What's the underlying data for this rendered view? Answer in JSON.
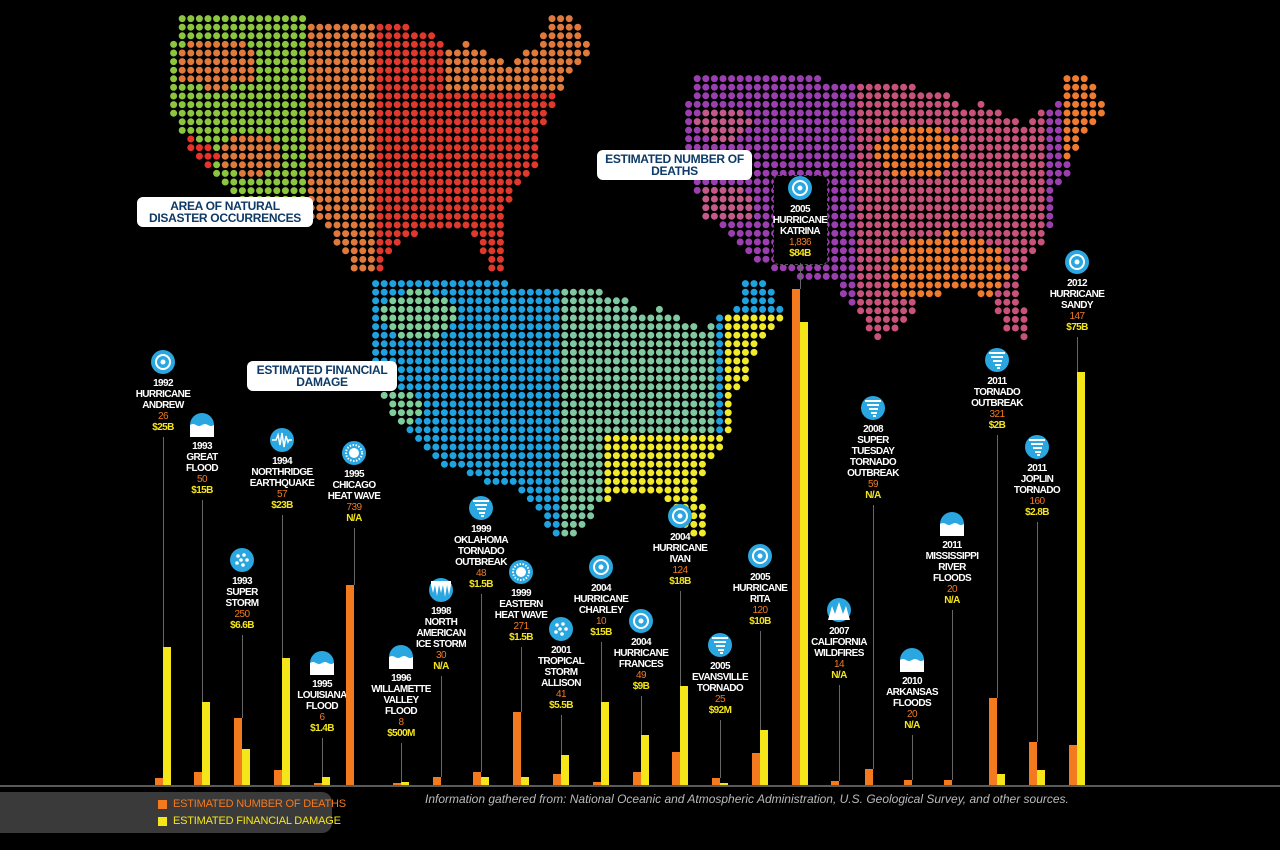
{
  "colors": {
    "deaths": "#f47a20",
    "damage": "#f5e61a",
    "icon": "#2aa6e0",
    "label_text": "#0d3a66"
  },
  "map_labels": {
    "occurrences": "AREA OF NATURAL DISASTER OCCURRENCES",
    "deaths": "ESTIMATED NUMBER OF DEATHS",
    "damage": "ESTIMATED FINANCIAL DAMAGE"
  },
  "legend": {
    "deaths": "ESTIMATED NUMBER OF DEATHS",
    "damage": "ESTIMATED FINANCIAL DAMAGE"
  },
  "source": "Information gathered from: National Oceanic and Atmospheric Administration, U.S. Geological Survey, and other sources.",
  "chart_data": {
    "type": "bar",
    "series": [
      {
        "name": "ESTIMATED NUMBER OF DEATHS",
        "unit": "deaths"
      },
      {
        "name": "ESTIMATED FINANCIAL DAMAGE",
        "unit": "billion USD"
      }
    ],
    "events": [
      {
        "year": "1992",
        "name": [
          "HURRICANE",
          "ANDREW"
        ],
        "icon": "hurricane-icon",
        "deaths_label": "26",
        "deaths": 26,
        "damage_label": "$25B",
        "damage": 25
      },
      {
        "year": "1993",
        "name": [
          "GREAT",
          "FLOOD"
        ],
        "icon": "flood-icon",
        "deaths_label": "50",
        "deaths": 50,
        "damage_label": "$15B",
        "damage": 15
      },
      {
        "year": "1993",
        "name": [
          "SUPER",
          "STORM"
        ],
        "icon": "storm-icon",
        "deaths_label": "250",
        "deaths": 250,
        "damage_label": "$6.6B",
        "damage": 6.6
      },
      {
        "year": "1994",
        "name": [
          "NORTHRIDGE",
          "EARTHQUAKE"
        ],
        "icon": "earthquake-icon",
        "deaths_label": "57",
        "deaths": 57,
        "damage_label": "$23B",
        "damage": 23
      },
      {
        "year": "1995",
        "name": [
          "LOUISIANA",
          "FLOOD"
        ],
        "icon": "flood-icon",
        "deaths_label": "6",
        "deaths": 6,
        "damage_label": "$1.4B",
        "damage": 1.4
      },
      {
        "year": "1995",
        "name": [
          "CHICAGO",
          "HEAT WAVE"
        ],
        "icon": "heat-icon",
        "deaths_label": "739",
        "deaths": 739,
        "damage_label": "N/A",
        "damage": null
      },
      {
        "year": "1996",
        "name": [
          "WILLAMETTE",
          "VALLEY",
          "FLOOD"
        ],
        "icon": "flood-icon",
        "deaths_label": "8",
        "deaths": 8,
        "damage_label": "$500M",
        "damage": 0.5
      },
      {
        "year": "1998",
        "name": [
          "NORTH",
          "AMERICAN",
          "ICE STORM"
        ],
        "icon": "ice-icon",
        "deaths_label": "30",
        "deaths": 30,
        "damage_label": "N/A",
        "damage": null
      },
      {
        "year": "1999",
        "name": [
          "OKLAHOMA",
          "TORNADO",
          "OUTBREAK"
        ],
        "icon": "tornado-icon",
        "deaths_label": "48",
        "deaths": 48,
        "damage_label": "$1.5B",
        "damage": 1.5
      },
      {
        "year": "1999",
        "name": [
          "EASTERN",
          "HEAT WAVE"
        ],
        "icon": "heat-icon",
        "deaths_label": "271",
        "deaths": 271,
        "damage_label": "$1.5B",
        "damage": 1.5
      },
      {
        "year": "2001",
        "name": [
          "TROPICAL",
          "STORM",
          "ALLISON"
        ],
        "icon": "storm-icon",
        "deaths_label": "41",
        "deaths": 41,
        "damage_label": "$5.5B",
        "damage": 5.5
      },
      {
        "year": "2004",
        "name": [
          "HURRICANE",
          "CHARLEY"
        ],
        "icon": "hurricane-icon",
        "deaths_label": "10",
        "deaths": 10,
        "damage_label": "$15B",
        "damage": 15
      },
      {
        "year": "2004",
        "name": [
          "HURRICANE",
          "FRANCES"
        ],
        "icon": "hurricane-icon",
        "deaths_label": "49",
        "deaths": 49,
        "damage_label": "$9B",
        "damage": 9
      },
      {
        "year": "2004",
        "name": [
          "HURRICANE",
          "IVAN"
        ],
        "icon": "hurricane-icon",
        "deaths_label": "124",
        "deaths": 124,
        "damage_label": "$18B",
        "damage": 18
      },
      {
        "year": "2005",
        "name": [
          "EVANSVILLE",
          "TORNADO"
        ],
        "icon": "tornado-icon",
        "deaths_label": "25",
        "deaths": 25,
        "damage_label": "$92M",
        "damage": 0.092
      },
      {
        "year": "2005",
        "name": [
          "HURRICANE",
          "RITA"
        ],
        "icon": "hurricane-icon",
        "deaths_label": "120",
        "deaths": 120,
        "damage_label": "$10B",
        "damage": 10
      },
      {
        "year": "2005",
        "name": [
          "HURRICANE",
          "KATRINA"
        ],
        "icon": "hurricane-icon",
        "deaths_label": "1,836",
        "deaths": 1836,
        "damage_label": "$84B",
        "damage": 84
      },
      {
        "year": "2007",
        "name": [
          "CALIFORNIA",
          "WILDFIRES"
        ],
        "icon": "wildfire-icon",
        "deaths_label": "14",
        "deaths": 14,
        "damage_label": "N/A",
        "damage": null
      },
      {
        "year": "2008",
        "name": [
          "SUPER",
          "TUESDAY",
          "TORNADO",
          "OUTBREAK"
        ],
        "icon": "tornado-icon",
        "deaths_label": "59",
        "deaths": 59,
        "damage_label": "N/A",
        "damage": null
      },
      {
        "year": "2010",
        "name": [
          "ARKANSAS",
          "FLOODS"
        ],
        "icon": "flood-icon",
        "deaths_label": "20",
        "deaths": 20,
        "damage_label": "N/A",
        "damage": null
      },
      {
        "year": "2011",
        "name": [
          "MISSISSIPPI",
          "RIVER",
          "FLOODS"
        ],
        "icon": "flood-icon",
        "deaths_label": "20",
        "deaths": 20,
        "damage_label": "N/A",
        "damage": null
      },
      {
        "year": "2011",
        "name": [
          "TORNADO",
          "OUTBREAK"
        ],
        "icon": "tornado-icon",
        "deaths_label": "321",
        "deaths": 321,
        "damage_label": "$2B",
        "damage": 2
      },
      {
        "year": "2011",
        "name": [
          "JOPLIN",
          "TORNADO"
        ],
        "icon": "tornado-icon",
        "deaths_label": "160",
        "deaths": 160,
        "damage_label": "$2.8B",
        "damage": 2.8
      },
      {
        "year": "2012",
        "name": [
          "HURRICANE",
          "SANDY"
        ],
        "icon": "hurricane-icon",
        "deaths_label": "147",
        "deaths": 147,
        "damage_label": "$75B",
        "damage": 75
      }
    ]
  }
}
